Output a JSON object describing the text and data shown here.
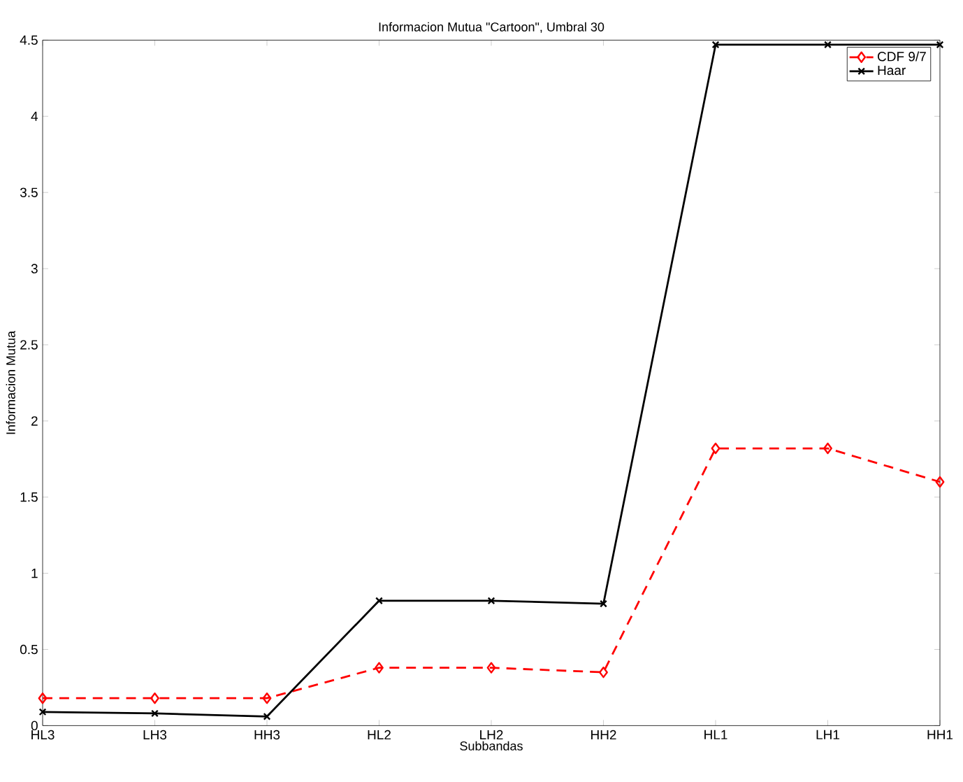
{
  "chart_data": {
    "type": "line",
    "title": "Informacion Mutua \"Cartoon\", Umbral 30",
    "xlabel": "Subbandas",
    "ylabel": "Informacion Mutua",
    "categories": [
      "HL3",
      "LH3",
      "HH3",
      "HL2",
      "LH2",
      "HH2",
      "HL1",
      "LH1",
      "HH1"
    ],
    "series": [
      {
        "name": "CDF 9/7",
        "color": "#ff0000",
        "marker": "diamond",
        "line_style": "dashed",
        "values": [
          0.18,
          0.18,
          0.18,
          0.38,
          0.38,
          0.35,
          1.82,
          1.82,
          1.6
        ]
      },
      {
        "name": "Haar",
        "color": "#000000",
        "marker": "cross",
        "line_style": "solid",
        "values": [
          0.09,
          0.08,
          0.06,
          0.82,
          0.82,
          0.8,
          4.47,
          4.47,
          4.47
        ]
      }
    ],
    "ylim": [
      0,
      4.5
    ],
    "yticks": [
      0,
      0.5,
      1,
      1.5,
      2,
      2.5,
      3,
      3.5,
      4,
      4.5
    ],
    "grid": false,
    "legend": "top right"
  }
}
